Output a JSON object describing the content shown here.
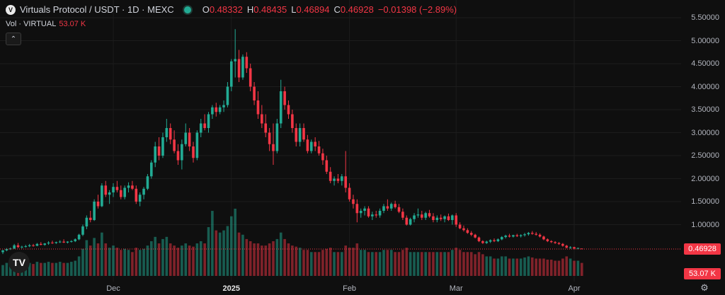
{
  "legend": {
    "symbol_title": "Virtuals Protocol / USDT · 1D · MEXC",
    "open_label": "O",
    "open_value": "0.48332",
    "high_label": "H",
    "high_value": "0.48435",
    "low_label": "L",
    "low_value": "0.46894",
    "close_label": "C",
    "close_value": "0.46928",
    "change_value": "−0.01398 (−2.89%)"
  },
  "volume_legend": {
    "label": "Vol · VIRTUAL",
    "value": "53.07 K"
  },
  "price_axis": {
    "ticks": [
      "5.50000",
      "5.00000",
      "4.50000",
      "4.00000",
      "3.50000",
      "3.00000",
      "2.50000",
      "2.00000",
      "1.50000",
      "1.00000"
    ]
  },
  "last_price_label": "0.46928",
  "volume_label": "53.07 K",
  "time_axis": {
    "ticks": [
      "Dec",
      "2025",
      "Feb",
      "Mar",
      "Apr"
    ]
  },
  "logo_text": "TV",
  "colors": {
    "up": "#22ab94",
    "down": "#f23645",
    "background": "#0f0f0f",
    "grid": "#1c1c1c"
  },
  "chart_data": {
    "type": "candlestick",
    "title": "Virtuals Protocol / USDT · 1D · MEXC",
    "ylim": [
      0.3,
      5.6
    ],
    "x_range": [
      "2024-11-02",
      "2025-04-14"
    ],
    "candles": [
      [
        0.4,
        0.45,
        0.36,
        0.44,
        10
      ],
      [
        0.44,
        0.49,
        0.42,
        0.47,
        12
      ],
      [
        0.47,
        0.5,
        0.45,
        0.48,
        11
      ],
      [
        0.48,
        0.58,
        0.47,
        0.55,
        18
      ],
      [
        0.55,
        0.6,
        0.49,
        0.51,
        15
      ],
      [
        0.51,
        0.54,
        0.48,
        0.52,
        10
      ],
      [
        0.52,
        0.56,
        0.5,
        0.53,
        11
      ],
      [
        0.53,
        0.58,
        0.51,
        0.55,
        12
      ],
      [
        0.55,
        0.58,
        0.52,
        0.54,
        11
      ],
      [
        0.54,
        0.6,
        0.53,
        0.58,
        13
      ],
      [
        0.58,
        0.62,
        0.55,
        0.56,
        12
      ],
      [
        0.56,
        0.6,
        0.54,
        0.59,
        12
      ],
      [
        0.59,
        0.64,
        0.56,
        0.61,
        13
      ],
      [
        0.61,
        0.65,
        0.58,
        0.6,
        12
      ],
      [
        0.6,
        0.63,
        0.58,
        0.62,
        12
      ],
      [
        0.62,
        0.66,
        0.6,
        0.63,
        13
      ],
      [
        0.63,
        0.68,
        0.6,
        0.61,
        12
      ],
      [
        0.61,
        0.64,
        0.59,
        0.63,
        12
      ],
      [
        0.63,
        0.66,
        0.61,
        0.64,
        13
      ],
      [
        0.64,
        0.7,
        0.62,
        0.68,
        14
      ],
      [
        0.68,
        0.8,
        0.66,
        0.78,
        18
      ],
      [
        0.78,
        1.0,
        0.75,
        0.96,
        25
      ],
      [
        0.96,
        1.2,
        0.9,
        1.15,
        33
      ],
      [
        1.15,
        1.3,
        1.05,
        1.1,
        28
      ],
      [
        1.1,
        1.55,
        1.08,
        1.5,
        35
      ],
      [
        1.5,
        1.65,
        1.35,
        1.4,
        30
      ],
      [
        1.4,
        1.9,
        1.38,
        1.85,
        40
      ],
      [
        1.85,
        1.95,
        1.6,
        1.65,
        30
      ],
      [
        1.65,
        1.75,
        1.45,
        1.7,
        26
      ],
      [
        1.7,
        1.9,
        1.6,
        1.82,
        28
      ],
      [
        1.82,
        1.95,
        1.7,
        1.75,
        26
      ],
      [
        1.75,
        1.85,
        1.55,
        1.6,
        24
      ],
      [
        1.6,
        1.85,
        1.55,
        1.8,
        25
      ],
      [
        1.8,
        1.92,
        1.7,
        1.85,
        24
      ],
      [
        1.85,
        1.95,
        1.75,
        1.78,
        22
      ],
      [
        1.78,
        1.85,
        1.45,
        1.5,
        26
      ],
      [
        1.5,
        1.7,
        1.4,
        1.65,
        24
      ],
      [
        1.65,
        1.82,
        1.55,
        1.78,
        25
      ],
      [
        1.78,
        2.1,
        1.75,
        2.05,
        28
      ],
      [
        2.05,
        2.4,
        2.0,
        2.35,
        32
      ],
      [
        2.35,
        2.8,
        2.25,
        2.7,
        36
      ],
      [
        2.7,
        2.9,
        2.4,
        2.5,
        30
      ],
      [
        2.5,
        3.0,
        2.45,
        2.9,
        34
      ],
      [
        2.9,
        3.3,
        2.8,
        3.1,
        36
      ],
      [
        3.1,
        3.2,
        2.75,
        2.85,
        30
      ],
      [
        2.85,
        3.05,
        2.55,
        2.6,
        28
      ],
      [
        2.6,
        2.75,
        2.3,
        2.4,
        26
      ],
      [
        2.4,
        2.85,
        2.2,
        2.75,
        28
      ],
      [
        2.75,
        3.2,
        2.7,
        3.0,
        30
      ],
      [
        3.0,
        3.1,
        2.6,
        2.7,
        28
      ],
      [
        2.7,
        2.8,
        2.35,
        2.45,
        27
      ],
      [
        2.45,
        3.05,
        2.4,
        3.0,
        30
      ],
      [
        3.0,
        3.3,
        2.9,
        3.2,
        32
      ],
      [
        3.2,
        3.4,
        3.05,
        3.1,
        30
      ],
      [
        3.1,
        3.45,
        3.0,
        3.4,
        45
      ],
      [
        3.4,
        3.6,
        3.3,
        3.55,
        60
      ],
      [
        3.55,
        3.65,
        3.35,
        3.45,
        42
      ],
      [
        3.45,
        3.6,
        3.4,
        3.55,
        40
      ],
      [
        3.55,
        3.7,
        3.45,
        3.6,
        42
      ],
      [
        3.6,
        4.1,
        3.55,
        4.0,
        46
      ],
      [
        4.0,
        4.6,
        3.9,
        4.55,
        55
      ],
      [
        4.55,
        5.25,
        4.2,
        4.6,
        62
      ],
      [
        4.6,
        4.8,
        4.1,
        4.2,
        40
      ],
      [
        4.2,
        4.7,
        4.15,
        4.65,
        38
      ],
      [
        4.65,
        4.75,
        4.3,
        4.4,
        34
      ],
      [
        4.4,
        4.5,
        3.9,
        4.0,
        32
      ],
      [
        4.0,
        4.1,
        3.6,
        3.7,
        30
      ],
      [
        3.7,
        3.9,
        3.3,
        3.4,
        30
      ],
      [
        3.4,
        3.6,
        3.1,
        3.2,
        28
      ],
      [
        3.2,
        3.4,
        2.9,
        3.0,
        28
      ],
      [
        3.0,
        3.1,
        2.6,
        2.75,
        30
      ],
      [
        2.75,
        3.2,
        2.3,
        2.6,
        32
      ],
      [
        2.6,
        3.3,
        2.55,
        3.2,
        34
      ],
      [
        3.2,
        4.15,
        3.1,
        3.9,
        40
      ],
      [
        3.9,
        4.0,
        3.5,
        3.6,
        34
      ],
      [
        3.6,
        3.7,
        3.3,
        3.4,
        30
      ],
      [
        3.4,
        3.5,
        3.0,
        3.1,
        28
      ],
      [
        3.1,
        3.2,
        2.7,
        2.8,
        27
      ],
      [
        2.8,
        3.2,
        2.7,
        3.1,
        26
      ],
      [
        3.1,
        3.2,
        2.8,
        2.85,
        24
      ],
      [
        2.85,
        2.95,
        2.55,
        2.6,
        24
      ],
      [
        2.6,
        2.85,
        2.55,
        2.8,
        22
      ],
      [
        2.8,
        2.9,
        2.6,
        2.7,
        22
      ],
      [
        2.7,
        2.82,
        2.5,
        2.55,
        22
      ],
      [
        2.55,
        2.65,
        2.3,
        2.4,
        24
      ],
      [
        2.4,
        2.5,
        2.1,
        2.15,
        25
      ],
      [
        2.15,
        2.25,
        1.9,
        1.95,
        26
      ],
      [
        1.95,
        2.05,
        1.85,
        2.0,
        22
      ],
      [
        2.0,
        2.1,
        1.9,
        1.95,
        22
      ],
      [
        1.95,
        2.1,
        1.85,
        2.05,
        22
      ],
      [
        2.05,
        2.6,
        1.7,
        1.8,
        28
      ],
      [
        1.8,
        1.9,
        1.5,
        1.55,
        26
      ],
      [
        1.55,
        1.65,
        1.35,
        1.45,
        26
      ],
      [
        1.45,
        1.55,
        1.05,
        1.25,
        30
      ],
      [
        1.25,
        1.35,
        1.15,
        1.3,
        24
      ],
      [
        1.3,
        1.4,
        1.2,
        1.35,
        24
      ],
      [
        1.35,
        1.4,
        1.15,
        1.18,
        22
      ],
      [
        1.18,
        1.28,
        1.1,
        1.22,
        22
      ],
      [
        1.22,
        1.3,
        1.15,
        1.2,
        22
      ],
      [
        1.2,
        1.35,
        1.15,
        1.3,
        22
      ],
      [
        1.3,
        1.45,
        1.25,
        1.4,
        24
      ],
      [
        1.4,
        1.55,
        1.3,
        1.35,
        24
      ],
      [
        1.35,
        1.48,
        1.3,
        1.45,
        24
      ],
      [
        1.45,
        1.52,
        1.35,
        1.38,
        22
      ],
      [
        1.38,
        1.45,
        1.25,
        1.28,
        22
      ],
      [
        1.28,
        1.35,
        1.1,
        1.15,
        24
      ],
      [
        1.15,
        1.2,
        0.98,
        1.0,
        26
      ],
      [
        1.0,
        1.15,
        0.98,
        1.12,
        22
      ],
      [
        1.12,
        1.25,
        1.05,
        1.2,
        22
      ],
      [
        1.2,
        1.35,
        1.15,
        1.22,
        22
      ],
      [
        1.22,
        1.3,
        1.1,
        1.15,
        22
      ],
      [
        1.15,
        1.28,
        1.1,
        1.25,
        22
      ],
      [
        1.25,
        1.32,
        1.15,
        1.18,
        22
      ],
      [
        1.18,
        1.25,
        1.05,
        1.1,
        22
      ],
      [
        1.1,
        1.2,
        1.05,
        1.15,
        22
      ],
      [
        1.15,
        1.22,
        1.08,
        1.12,
        22
      ],
      [
        1.12,
        1.2,
        1.05,
        1.18,
        22
      ],
      [
        1.18,
        1.24,
        1.08,
        1.1,
        22
      ],
      [
        1.1,
        1.22,
        1.0,
        1.2,
        24
      ],
      [
        1.2,
        1.25,
        0.95,
        1.0,
        26
      ],
      [
        1.0,
        1.05,
        0.9,
        0.92,
        24
      ],
      [
        0.92,
        0.98,
        0.85,
        0.88,
        22
      ],
      [
        0.88,
        0.92,
        0.8,
        0.82,
        22
      ],
      [
        0.82,
        0.86,
        0.75,
        0.78,
        22
      ],
      [
        0.78,
        0.8,
        0.7,
        0.72,
        20
      ],
      [
        0.72,
        0.74,
        0.62,
        0.64,
        22
      ],
      [
        0.64,
        0.66,
        0.58,
        0.6,
        20
      ],
      [
        0.6,
        0.65,
        0.58,
        0.63,
        18
      ],
      [
        0.63,
        0.68,
        0.6,
        0.66,
        18
      ],
      [
        0.66,
        0.7,
        0.62,
        0.64,
        16
      ],
      [
        0.64,
        0.7,
        0.62,
        0.68,
        16
      ],
      [
        0.68,
        0.75,
        0.66,
        0.73,
        18
      ],
      [
        0.73,
        0.78,
        0.7,
        0.76,
        18
      ],
      [
        0.76,
        0.8,
        0.72,
        0.74,
        16
      ],
      [
        0.74,
        0.78,
        0.72,
        0.77,
        16
      ],
      [
        0.77,
        0.8,
        0.73,
        0.75,
        16
      ],
      [
        0.75,
        0.79,
        0.72,
        0.77,
        16
      ],
      [
        0.77,
        0.82,
        0.74,
        0.79,
        17
      ],
      [
        0.79,
        0.84,
        0.76,
        0.82,
        18
      ],
      [
        0.82,
        0.86,
        0.78,
        0.8,
        17
      ],
      [
        0.8,
        0.84,
        0.76,
        0.78,
        16
      ],
      [
        0.78,
        0.81,
        0.72,
        0.74,
        16
      ],
      [
        0.74,
        0.76,
        0.66,
        0.68,
        16
      ],
      [
        0.68,
        0.7,
        0.62,
        0.64,
        15
      ],
      [
        0.64,
        0.66,
        0.6,
        0.62,
        15
      ],
      [
        0.62,
        0.64,
        0.58,
        0.6,
        14
      ],
      [
        0.6,
        0.62,
        0.56,
        0.58,
        14
      ],
      [
        0.58,
        0.6,
        0.52,
        0.54,
        16
      ],
      [
        0.54,
        0.56,
        0.48,
        0.5,
        18
      ],
      [
        0.5,
        0.53,
        0.47,
        0.51,
        16
      ],
      [
        0.51,
        0.52,
        0.46,
        0.48,
        14
      ],
      [
        0.48,
        0.5,
        0.46,
        0.49,
        14
      ],
      [
        0.48,
        0.48,
        0.47,
        0.47,
        12
      ]
    ]
  }
}
